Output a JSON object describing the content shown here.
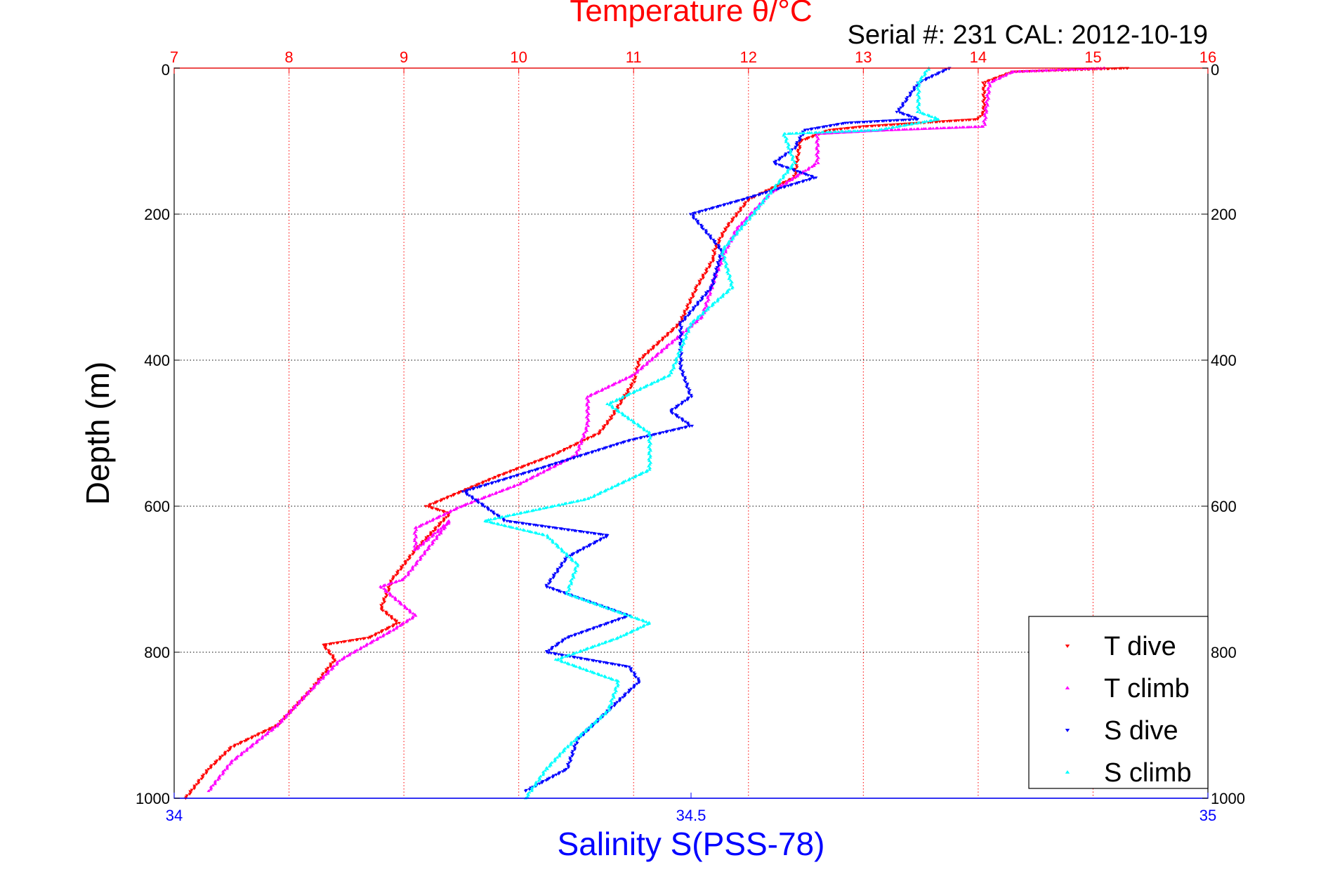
{
  "chart_data": {
    "type": "scatter",
    "title": "Temperature θ/°C",
    "subtitle": "Serial #: 231  CAL: 2012-10-19",
    "ylabel": "Depth (m)",
    "y_inverted": true,
    "ylim": [
      0,
      1000
    ],
    "yticks": [
      "0",
      "200",
      "400",
      "600",
      "800",
      "1000"
    ],
    "top_axis": {
      "label": "Temperature θ/°C",
      "lim": [
        7,
        16
      ],
      "ticks": [
        "7",
        "8",
        "9",
        "10",
        "11",
        "12",
        "13",
        "14",
        "15",
        "16"
      ],
      "color": "#ff0000"
    },
    "bottom_axis": {
      "label": "Salinity S(PSS-78)",
      "lim": [
        34,
        35
      ],
      "ticks": [
        "34",
        "34.5",
        "35"
      ],
      "color": "#0000ff"
    },
    "grid": true,
    "legend_position": "bottom-right",
    "series": [
      {
        "name": "T dive",
        "axis": "temperature",
        "color": "#ff0000",
        "marker": "triangle-down",
        "points": [
          [
            15.3,
            0
          ],
          [
            14.3,
            5
          ],
          [
            14.05,
            20
          ],
          [
            14.05,
            60
          ],
          [
            14.0,
            70
          ],
          [
            13.0,
            80
          ],
          [
            12.7,
            85
          ],
          [
            12.45,
            100
          ],
          [
            12.4,
            150
          ],
          [
            12.0,
            180
          ],
          [
            11.8,
            220
          ],
          [
            11.7,
            250
          ],
          [
            11.7,
            260
          ],
          [
            11.55,
            300
          ],
          [
            11.4,
            350
          ],
          [
            11.05,
            400
          ],
          [
            11.0,
            430
          ],
          [
            10.8,
            480
          ],
          [
            10.7,
            500
          ],
          [
            10.3,
            530
          ],
          [
            9.8,
            560
          ],
          [
            9.2,
            600
          ],
          [
            9.4,
            610
          ],
          [
            9.1,
            660
          ],
          [
            8.9,
            700
          ],
          [
            8.8,
            740
          ],
          [
            8.95,
            760
          ],
          [
            8.7,
            780
          ],
          [
            8.3,
            790
          ],
          [
            8.4,
            810
          ],
          [
            8.2,
            850
          ],
          [
            7.9,
            900
          ],
          [
            7.5,
            930
          ],
          [
            7.3,
            960
          ],
          [
            7.1,
            1000
          ]
        ]
      },
      {
        "name": "T climb",
        "axis": "temperature",
        "color": "#ff00ff",
        "marker": "triangle-up",
        "points": [
          [
            15.1,
            0
          ],
          [
            14.3,
            5
          ],
          [
            14.1,
            20
          ],
          [
            14.05,
            80
          ],
          [
            13.2,
            85
          ],
          [
            12.6,
            90
          ],
          [
            12.6,
            130
          ],
          [
            12.2,
            170
          ],
          [
            11.9,
            220
          ],
          [
            11.8,
            250
          ],
          [
            11.7,
            290
          ],
          [
            11.6,
            340
          ],
          [
            11.3,
            380
          ],
          [
            11.0,
            420
          ],
          [
            10.6,
            450
          ],
          [
            10.6,
            490
          ],
          [
            10.5,
            530
          ],
          [
            10.0,
            570
          ],
          [
            9.5,
            600
          ],
          [
            9.1,
            630
          ],
          [
            9.1,
            660
          ],
          [
            9.4,
            620
          ],
          [
            9.0,
            700
          ],
          [
            8.8,
            710
          ],
          [
            9.1,
            750
          ],
          [
            8.9,
            770
          ],
          [
            8.45,
            810
          ],
          [
            8.2,
            850
          ],
          [
            7.9,
            900
          ],
          [
            7.5,
            950
          ],
          [
            7.3,
            990
          ]
        ]
      },
      {
        "name": "S dive",
        "axis": "salinity",
        "color": "#0000ff",
        "marker": "triangle-down",
        "points": [
          [
            34.75,
            0
          ],
          [
            34.72,
            20
          ],
          [
            34.7,
            60
          ],
          [
            34.72,
            70
          ],
          [
            34.65,
            75
          ],
          [
            34.61,
            85
          ],
          [
            34.6,
            110
          ],
          [
            34.58,
            130
          ],
          [
            34.62,
            150
          ],
          [
            34.55,
            180
          ],
          [
            34.5,
            200
          ],
          [
            34.53,
            250
          ],
          [
            34.52,
            300
          ],
          [
            34.49,
            350
          ],
          [
            34.49,
            410
          ],
          [
            34.5,
            450
          ],
          [
            34.48,
            470
          ],
          [
            34.5,
            490
          ],
          [
            34.44,
            510
          ],
          [
            34.35,
            550
          ],
          [
            34.28,
            580
          ],
          [
            34.32,
            620
          ],
          [
            34.42,
            640
          ],
          [
            34.38,
            670
          ],
          [
            34.36,
            710
          ],
          [
            34.44,
            750
          ],
          [
            34.38,
            780
          ],
          [
            34.36,
            800
          ],
          [
            34.44,
            820
          ],
          [
            34.45,
            840
          ],
          [
            34.42,
            880
          ],
          [
            34.39,
            920
          ],
          [
            34.38,
            960
          ],
          [
            34.34,
            990
          ]
        ]
      },
      {
        "name": "S climb",
        "axis": "salinity",
        "color": "#00ffff",
        "marker": "triangle-up",
        "points": [
          [
            34.73,
            0
          ],
          [
            34.72,
            20
          ],
          [
            34.72,
            60
          ],
          [
            34.74,
            70
          ],
          [
            34.68,
            85
          ],
          [
            34.59,
            90
          ],
          [
            34.6,
            130
          ],
          [
            34.56,
            200
          ],
          [
            34.53,
            250
          ],
          [
            34.54,
            300
          ],
          [
            34.5,
            350
          ],
          [
            34.48,
            420
          ],
          [
            34.42,
            460
          ],
          [
            34.46,
            500
          ],
          [
            34.46,
            550
          ],
          [
            34.4,
            590
          ],
          [
            34.3,
            620
          ],
          [
            34.36,
            640
          ],
          [
            34.39,
            680
          ],
          [
            34.38,
            720
          ],
          [
            34.46,
            760
          ],
          [
            34.43,
            780
          ],
          [
            34.37,
            810
          ],
          [
            34.43,
            840
          ],
          [
            34.42,
            880
          ],
          [
            34.38,
            930
          ],
          [
            34.36,
            960
          ],
          [
            34.34,
            1000
          ]
        ]
      }
    ]
  }
}
